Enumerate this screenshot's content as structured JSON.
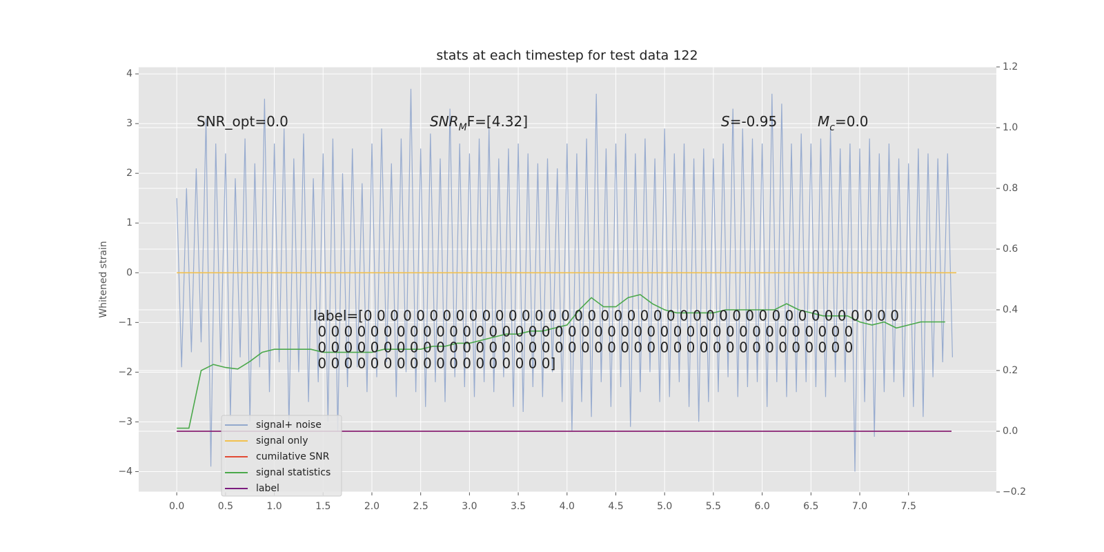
{
  "chart_data": {
    "type": "line",
    "title": "stats at each timestep for test data 122",
    "y_label": "Whitened strain",
    "xlim": [
      -0.39,
      8.4
    ],
    "ylim": [
      -4.41,
      4.14
    ],
    "y2lim": [
      -0.2,
      1.2
    ],
    "grid": true,
    "legend": "lower left",
    "xticks": [
      {
        "value": 0,
        "label": "0.0"
      },
      {
        "value": 0.5,
        "label": "0.5"
      },
      {
        "value": 1,
        "label": "1.0"
      },
      {
        "value": 1.5,
        "label": "1.5"
      },
      {
        "value": 2,
        "label": "2.0"
      },
      {
        "value": 2.5,
        "label": "2.5"
      },
      {
        "value": 3,
        "label": "3.0"
      },
      {
        "value": 3.5,
        "label": "3.5"
      },
      {
        "value": 4,
        "label": "4.0"
      },
      {
        "value": 4.5,
        "label": "4.5"
      },
      {
        "value": 5,
        "label": "5.0"
      },
      {
        "value": 5.5,
        "label": "5.5"
      },
      {
        "value": 6,
        "label": "6.0"
      },
      {
        "value": 6.5,
        "label": "6.5"
      },
      {
        "value": 7,
        "label": "7.0"
      },
      {
        "value": 7.5,
        "label": "7.5"
      }
    ],
    "yticks": [
      {
        "value": -4,
        "label": "−4"
      },
      {
        "value": -3,
        "label": "−3"
      },
      {
        "value": -2,
        "label": "−2"
      },
      {
        "value": -1,
        "label": "−1"
      },
      0,
      1,
      2,
      3,
      4
    ],
    "y2ticks": [
      {
        "value": -0.2,
        "label": "−0.2"
      },
      {
        "value": 0,
        "label": "0.0"
      },
      0.2,
      0.4,
      0.6,
      0.8,
      {
        "value": 1,
        "label": "1.0"
      },
      1.2
    ],
    "annotations": [
      {
        "parts": [
          "SNR_opt=0.0"
        ],
        "math": false
      },
      {
        "parts": [
          "SNR",
          "M",
          "F=[4.32]"
        ],
        "math": true
      },
      {
        "parts": [
          "S",
          "",
          "=-0.95"
        ],
        "math": true
      },
      {
        "parts": [
          "M",
          "c",
          "=0.0"
        ],
        "math": true
      }
    ],
    "label_text": [
      "label=[0 0 0 0 0 0 0 0 0 0 0 0 0 0 0 0 0 0 0 0 0 0 0 0 0 0 0 0 0 0 0 0 0 0 0 0 0 0 0 0 0",
      " 0 0 0 0 0 0 0 0 0 0 0 0 0 0 0 0 0 0 0 0 0 0 0 0 0 0 0 0 0 0 0 0 0 0 0 0 0 0 0 0 0",
      " 0 0 0 0 0 0 0 0 0 0 0 0 0 0 0 0 0 0 0 0 0 0 0 0 0 0 0 0 0 0 0 0 0 0 0 0 0 0 0 0 0",
      " 0 0 0 0 0 0 0 0 0 0 0 0 0 0 0 0 0 0]"
    ],
    "series": [
      {
        "name": "signal+ noise",
        "color": "#92a8cd",
        "axis": "y",
        "x": [
          0,
          0.05,
          0.1,
          0.15,
          0.2,
          0.25,
          0.3,
          0.35,
          0.4,
          0.45,
          0.5,
          0.55,
          0.6,
          0.65,
          0.7,
          0.75,
          0.8,
          0.85,
          0.9,
          0.95,
          1,
          1.05,
          1.1,
          1.15,
          1.2,
          1.25,
          1.3,
          1.35,
          1.4,
          1.45,
          1.5,
          1.55,
          1.6,
          1.65,
          1.7,
          1.75,
          1.8,
          1.85,
          1.9,
          1.95,
          2,
          2.05,
          2.1,
          2.15,
          2.2,
          2.25,
          2.3,
          2.35,
          2.4,
          2.45,
          2.5,
          2.55,
          2.6,
          2.65,
          2.7,
          2.75,
          2.8,
          2.85,
          2.9,
          2.95,
          3,
          3.05,
          3.1,
          3.15,
          3.2,
          3.25,
          3.3,
          3.35,
          3.4,
          3.45,
          3.5,
          3.55,
          3.6,
          3.65,
          3.7,
          3.75,
          3.8,
          3.85,
          3.9,
          3.95,
          4,
          4.05,
          4.1,
          4.15,
          4.2,
          4.25,
          4.3,
          4.35,
          4.4,
          4.45,
          4.5,
          4.55,
          4.6,
          4.65,
          4.7,
          4.75,
          4.8,
          4.85,
          4.9,
          4.95,
          5,
          5.05,
          5.1,
          5.15,
          5.2,
          5.25,
          5.3,
          5.35,
          5.4,
          5.45,
          5.5,
          5.55,
          5.6,
          5.65,
          5.7,
          5.75,
          5.8,
          5.85,
          5.9,
          5.95,
          6,
          6.05,
          6.1,
          6.15,
          6.2,
          6.25,
          6.3,
          6.35,
          6.4,
          6.45,
          6.5,
          6.55,
          6.6,
          6.65,
          6.7,
          6.75,
          6.8,
          6.85,
          6.9,
          6.95,
          7,
          7.05,
          7.1,
          7.15,
          7.2,
          7.25,
          7.3,
          7.35,
          7.4,
          7.45,
          7.5,
          7.55,
          7.6,
          7.65,
          7.7,
          7.75,
          7.8,
          7.85,
          7.9,
          7.95
        ],
        "values": [
          1.5,
          -1.9,
          1.7,
          -1.6,
          2.1,
          -1.4,
          3.1,
          -3.9,
          2.6,
          -1.8,
          2.4,
          -2.9,
          1.9,
          -1.7,
          2.7,
          -3.0,
          2.2,
          -1.9,
          3.5,
          -2.4,
          2.6,
          -1.8,
          2.9,
          -3.1,
          2.3,
          -2.0,
          2.8,
          -2.6,
          1.9,
          -2.2,
          2.4,
          -3.0,
          2.7,
          -3.2,
          2.0,
          -2.3,
          2.5,
          -1.9,
          1.8,
          -2.4,
          2.6,
          -2.1,
          2.9,
          -1.8,
          2.2,
          -2.5,
          2.7,
          -2.0,
          3.7,
          -2.4,
          2.5,
          -2.7,
          2.8,
          -2.2,
          2.3,
          -2.6,
          3.3,
          -2.1,
          2.6,
          -2.3,
          2.4,
          -2.5,
          2.7,
          -2.2,
          2.9,
          -2.4,
          2.3,
          -2.1,
          2.5,
          -2.7,
          2.6,
          -2.8,
          2.4,
          -2.3,
          2.2,
          -2.5,
          2.3,
          -2.0,
          2.1,
          -2.6,
          2.6,
          -3.2,
          2.4,
          -2.6,
          2.7,
          -2.9,
          3.6,
          -2.2,
          2.5,
          -2.7,
          2.6,
          -2.3,
          2.8,
          -3.1,
          2.4,
          -2.4,
          2.7,
          -2.0,
          2.3,
          -2.6,
          2.9,
          -2.5,
          2.4,
          -2.2,
          2.6,
          -2.7,
          2.3,
          -3.0,
          2.5,
          -2.6,
          2.3,
          -2.4,
          2.6,
          -2.1,
          3.3,
          -2.5,
          2.9,
          -2.3,
          2.7,
          -2.2,
          2.6,
          -2.7,
          3.6,
          -2.2,
          3.4,
          -2.5,
          2.6,
          -2.4,
          2.8,
          -2.2,
          2.6,
          -2.3,
          2.7,
          -2.5,
          2.9,
          -2.1,
          2.5,
          -2.2,
          2.6,
          -4.0,
          2.5,
          -2.6,
          2.7,
          -3.3,
          2.4,
          -2.4,
          2.6,
          -2.2,
          2.3,
          -2.5,
          2.2,
          -2.7,
          2.5,
          -2.9,
          2.4,
          -2.1,
          2.3,
          -1.8,
          2.4,
          -1.7
        ]
      },
      {
        "name": "signal only",
        "color": "#f2c14e",
        "axis": "y",
        "x": [
          0,
          7.99
        ],
        "values": [
          0,
          0
        ]
      },
      {
        "name": "cumilative SNR",
        "color": "#e24a33",
        "axis": "y2",
        "x": [
          0,
          7.94
        ],
        "values": [
          0,
          0
        ]
      },
      {
        "name": "signal statistics",
        "color": "#4aa84a",
        "axis": "y2",
        "x": [
          0,
          0.125,
          0.25,
          0.375,
          0.5,
          0.625,
          0.75,
          0.875,
          1,
          1.125,
          1.25,
          1.375,
          1.5,
          1.625,
          1.75,
          1.875,
          2,
          2.125,
          2.25,
          2.375,
          2.5,
          2.625,
          2.75,
          2.875,
          3,
          3.125,
          3.25,
          3.375,
          3.5,
          3.625,
          3.75,
          3.875,
          4,
          4.125,
          4.25,
          4.375,
          4.5,
          4.625,
          4.75,
          4.875,
          5,
          5.125,
          5.25,
          5.375,
          5.5,
          5.625,
          5.75,
          5.875,
          6,
          6.125,
          6.25,
          6.375,
          6.5,
          6.625,
          6.75,
          6.875,
          7,
          7.125,
          7.25,
          7.375,
          7.5,
          7.625,
          7.75,
          7.875
        ],
        "values": [
          0.01,
          0.01,
          0.2,
          0.22,
          0.21,
          0.205,
          0.23,
          0.26,
          0.27,
          0.27,
          0.27,
          0.27,
          0.26,
          0.26,
          0.26,
          0.26,
          0.26,
          0.27,
          0.27,
          0.27,
          0.27,
          0.28,
          0.28,
          0.29,
          0.29,
          0.3,
          0.31,
          0.32,
          0.32,
          0.33,
          0.33,
          0.34,
          0.35,
          0.4,
          0.44,
          0.41,
          0.41,
          0.44,
          0.45,
          0.42,
          0.4,
          0.39,
          0.39,
          0.39,
          0.39,
          0.4,
          0.4,
          0.4,
          0.4,
          0.4,
          0.42,
          0.4,
          0.39,
          0.38,
          0.38,
          0.38,
          0.36,
          0.35,
          0.36,
          0.34,
          0.35,
          0.36,
          0.36,
          0.36
        ]
      },
      {
        "name": "label",
        "color": "#7b1c7e",
        "axis": "y2",
        "x": [
          0,
          7.94
        ],
        "values": [
          0,
          0
        ]
      }
    ]
  }
}
